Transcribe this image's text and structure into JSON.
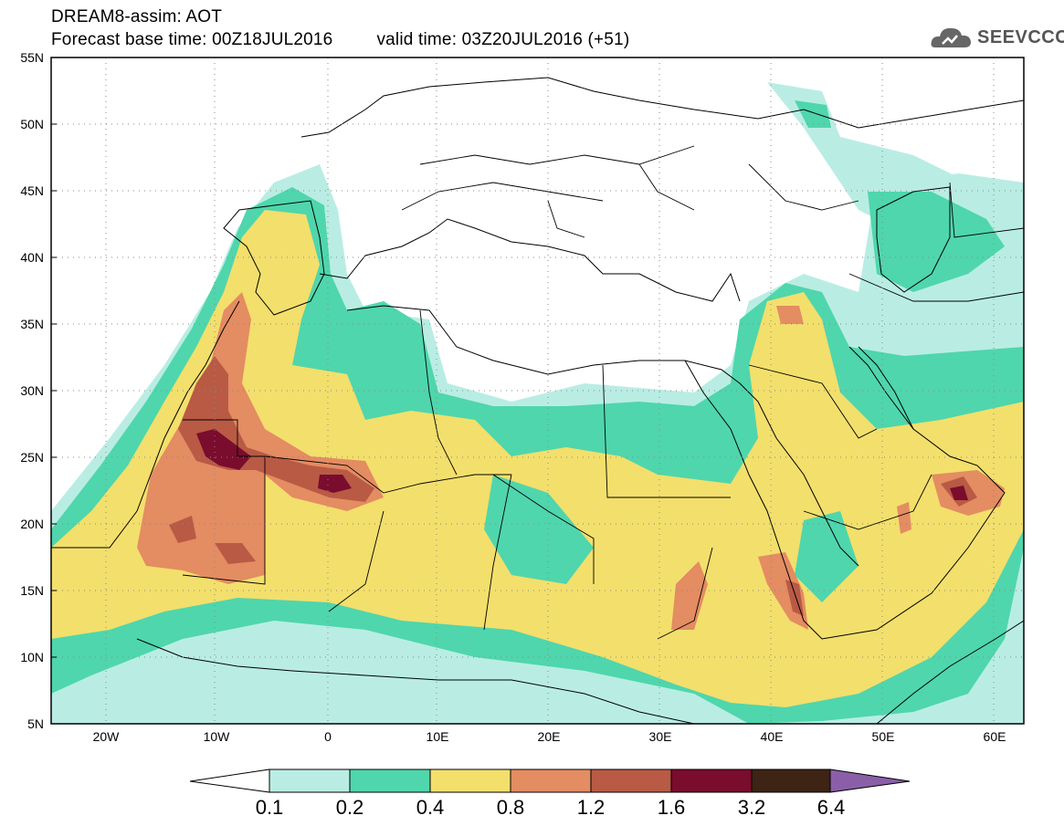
{
  "header": {
    "title": "DREAM8-assim: AOT",
    "base_time": "Forecast base time: 00Z18JUL2016",
    "valid_time": "valid time: 03Z20JUL2016 (+51)"
  },
  "logo": {
    "text": "SEEVCCC",
    "icon": "cloud-logo-icon"
  },
  "map": {
    "lat_ticks": [
      "55N",
      "50N",
      "45N",
      "40N",
      "35N",
      "30N",
      "25N",
      "20N",
      "15N",
      "10N",
      "5N"
    ],
    "lon_ticks": [
      "20W",
      "10W",
      "0",
      "10E",
      "20E",
      "30E",
      "40E",
      "50E",
      "60E"
    ],
    "lat_range": [
      5,
      55
    ],
    "lon_range": [
      -25,
      65
    ],
    "grid": true
  },
  "colorbar": {
    "labels": [
      "0.1",
      "0.2",
      "0.4",
      "0.8",
      "1.2",
      "1.6",
      "3.2",
      "6.4"
    ],
    "colors": {
      "c1": "#b9ede3",
      "c2": "#4fd6ac",
      "c3": "#f3df6c",
      "c4": "#e48c62",
      "c5": "#b95a45",
      "c6": "#7a0c2e",
      "c7": "#3d2415",
      "c8": "#8a5fa8"
    }
  }
}
